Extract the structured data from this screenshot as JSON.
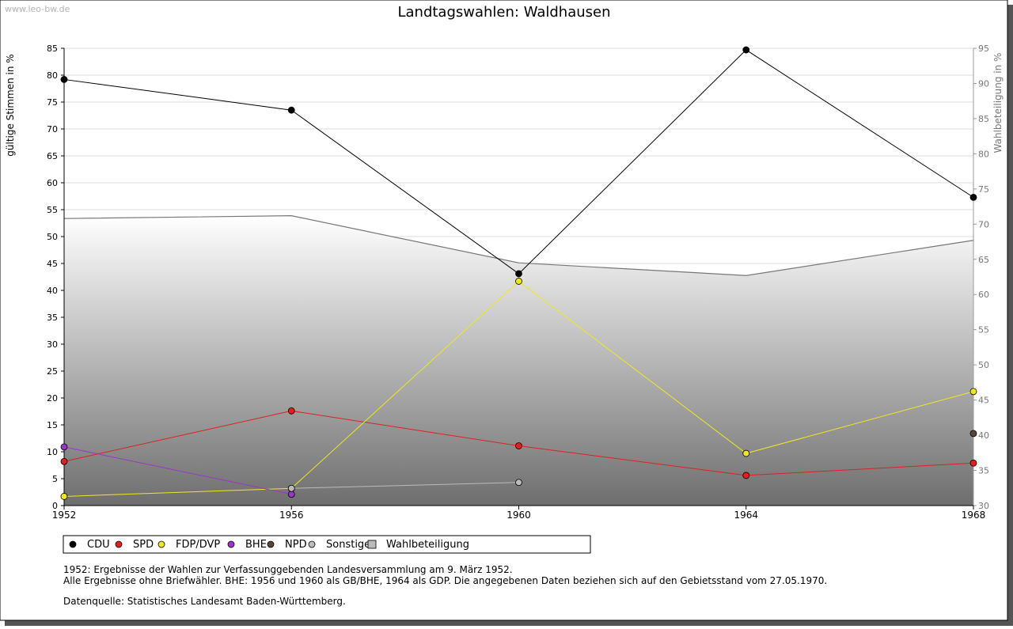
{
  "watermark": "www.leo-bw.de",
  "chart_data": {
    "type": "line",
    "title": "Landtagswahlen: Waldhausen",
    "ylabel": "gültige Stimmen in %",
    "y2label": "Wahlbeteiligung in %",
    "x": [
      "1952",
      "1956",
      "1960",
      "1964",
      "1968"
    ],
    "ylim": [
      0,
      85
    ],
    "y2lim": [
      30,
      95
    ],
    "yticks": [
      0,
      5,
      10,
      15,
      20,
      25,
      30,
      35,
      40,
      45,
      50,
      55,
      60,
      65,
      70,
      75,
      80,
      85
    ],
    "y2ticks": [
      30,
      35,
      40,
      45,
      50,
      55,
      60,
      65,
      70,
      75,
      80,
      85,
      90,
      95
    ],
    "grid": true,
    "legend_position": "bottom",
    "series": [
      {
        "name": "CDU",
        "color": "#000000",
        "values": [
          79.2,
          73.5,
          43.1,
          84.7,
          57.3
        ]
      },
      {
        "name": "SPD",
        "color": "#e41e1e",
        "values": [
          8.2,
          17.6,
          11.1,
          5.6,
          7.9
        ]
      },
      {
        "name": "FDP/DVP",
        "color": "#f0e81e",
        "values": [
          1.7,
          3.2,
          41.7,
          9.7,
          21.2
        ]
      },
      {
        "name": "BHE",
        "color": "#9b35c9",
        "values": [
          10.9,
          2.1,
          null,
          null,
          null
        ]
      },
      {
        "name": "NPD",
        "color": "#5a4632",
        "values": [
          null,
          null,
          null,
          null,
          13.4
        ]
      },
      {
        "name": "Sonstige",
        "color": "#bbbbbb",
        "values": [
          null,
          3.2,
          4.3,
          null,
          null
        ]
      }
    ],
    "turnout": {
      "name": "Wahlbeteiligung",
      "axis": "right",
      "values": [
        70.8,
        71.2,
        64.5,
        62.7,
        67.7
      ]
    }
  },
  "notes": [
    "1952: Ergebnisse der Wahlen zur Verfassunggebenden Landesversammlung am 9. März 1952.",
    "Alle Ergebnisse ohne Briefwähler. BHE: 1956 und 1960 als GB/BHE, 1964 als GDP. Die angegebenen Daten beziehen sich auf den Gebietsstand vom 27.05.1970.",
    "Datenquelle: Statistisches Landesamt Baden-Württemberg."
  ]
}
